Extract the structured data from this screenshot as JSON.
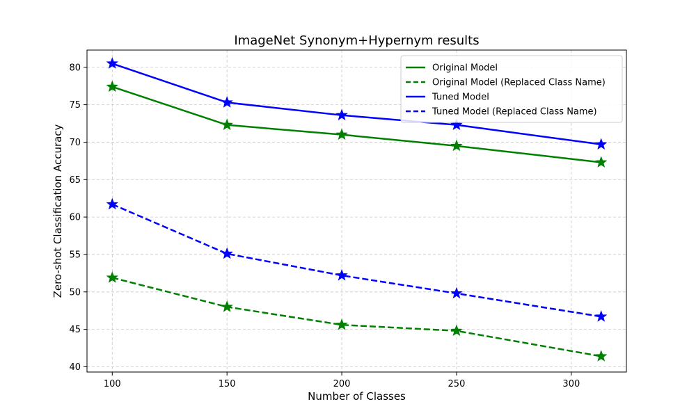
{
  "chart_data": {
    "type": "line",
    "title": "ImageNet Synonym+Hypernym results",
    "xlabel": "Number of Classes",
    "ylabel": "Zero-shot Classification Accuracy",
    "xlim": [
      89,
      324
    ],
    "ylim": [
      39.3,
      82.3
    ],
    "xticks": [
      100,
      150,
      200,
      250,
      300
    ],
    "yticks": [
      40,
      45,
      50,
      55,
      60,
      65,
      70,
      75,
      80
    ],
    "grid": true,
    "legend_position": "upper right",
    "x": [
      100,
      150,
      200,
      250,
      313
    ],
    "series": [
      {
        "name": "Original Model",
        "color": "#008000",
        "line_style": "solid",
        "marker": "star",
        "values": [
          77.4,
          72.3,
          71.0,
          69.5,
          67.3
        ]
      },
      {
        "name": "Original Model (Replaced Class Name)",
        "color": "#008000",
        "line_style": "dashed",
        "marker": "star",
        "values": [
          51.9,
          48.0,
          45.6,
          44.8,
          41.4
        ]
      },
      {
        "name": "Tuned Model",
        "color": "#0000ff",
        "line_style": "solid",
        "marker": "star",
        "values": [
          80.5,
          75.3,
          73.6,
          72.3,
          69.7
        ]
      },
      {
        "name": "Tuned Model (Replaced Class Name)",
        "color": "#0000ff",
        "line_style": "dashed",
        "marker": "star",
        "values": [
          61.7,
          55.1,
          52.2,
          49.8,
          46.7
        ]
      }
    ]
  }
}
